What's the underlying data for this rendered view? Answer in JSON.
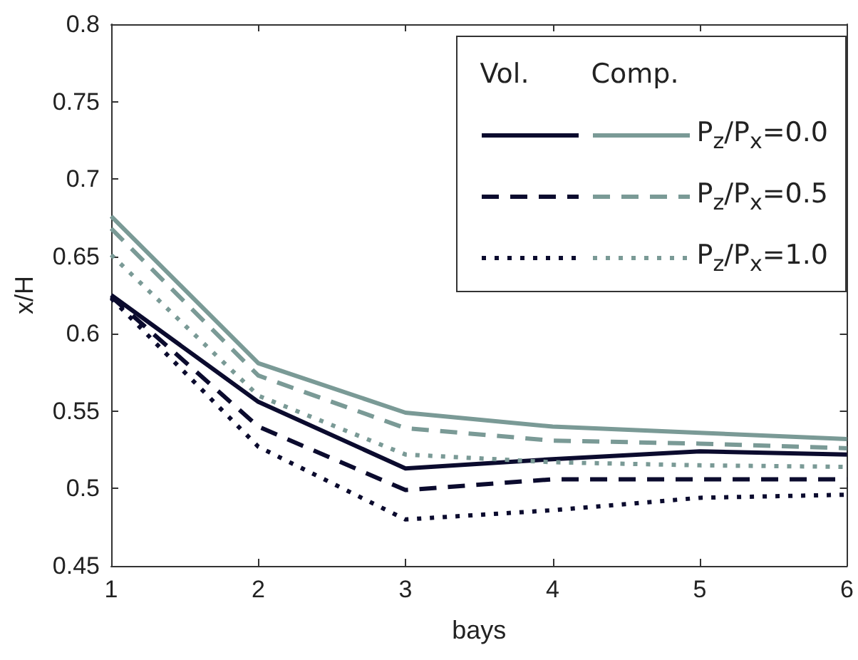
{
  "chart_data": {
    "type": "line",
    "xlabel": "bays",
    "ylabel": "x/H",
    "x": [
      1,
      2,
      3,
      4,
      5,
      6
    ],
    "xlim": [
      1,
      6
    ],
    "xticks": [
      1,
      2,
      3,
      4,
      5,
      6
    ],
    "ylim": [
      0.45,
      0.8
    ],
    "yticks": [
      0.45,
      0.5,
      0.55,
      0.6,
      0.65,
      0.7,
      0.75,
      0.8
    ],
    "grid": false,
    "legend": "top right",
    "marker": "none",
    "annotations": [
      "Vol.",
      "Comp."
    ],
    "series": [
      {
        "color": "#0b0b2e",
        "line_style": "solid",
        "values": [
          0.625,
          0.556,
          0.513,
          0.519,
          0.524,
          0.522
        ]
      },
      {
        "color": "#0b0b2e",
        "line_style": "dashed",
        "values": [
          0.624,
          0.54,
          0.499,
          0.506,
          0.506,
          0.506
        ]
      },
      {
        "color": "#0b0b2e",
        "line_style": "dotted",
        "values": [
          0.623,
          0.527,
          0.48,
          0.486,
          0.494,
          0.496
        ]
      },
      {
        "name": "P$_{z}$/P$_{x}$=0.0",
        "color": "#7a9a96",
        "line_style": "solid",
        "values": [
          0.676,
          0.581,
          0.549,
          0.54,
          0.536,
          0.532
        ]
      },
      {
        "name": "P$_{z}$/P$_{x}$=0.5",
        "color": "#7a9a96",
        "line_style": "dashed",
        "values": [
          0.668,
          0.573,
          0.539,
          0.531,
          0.529,
          0.526
        ]
      },
      {
        "name": "P$_{z}$/P$_{x}$=1.0",
        "color": "#7a9a96",
        "line_style": "dotted",
        "values": [
          0.651,
          0.56,
          0.522,
          0.517,
          0.515,
          0.514
        ]
      }
    ]
  }
}
